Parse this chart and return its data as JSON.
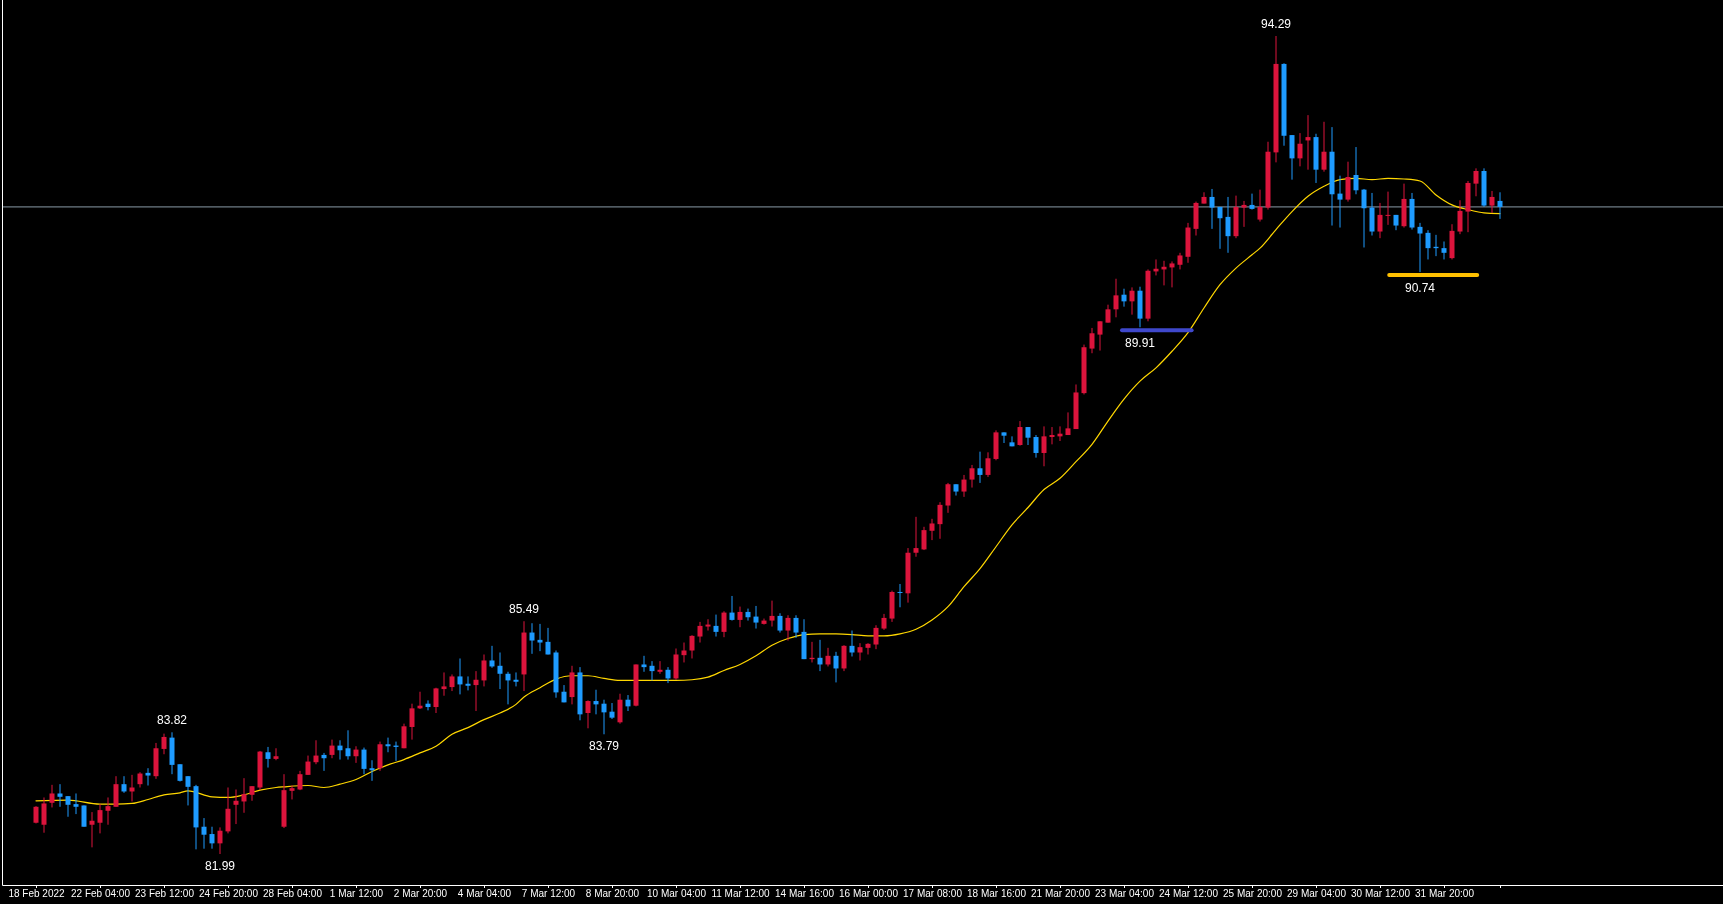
{
  "chart_data": {
    "type": "candlestick",
    "categories": [
      "18 Feb 2022",
      null,
      null,
      null,
      null,
      null,
      null,
      null,
      "22 Feb 04:00",
      null,
      null,
      null,
      null,
      null,
      null,
      null,
      "23 Feb 12:00",
      null,
      null,
      null,
      null,
      null,
      null,
      null,
      "24 Feb 20:00",
      null,
      null,
      null,
      null,
      null,
      null,
      null,
      "28 Feb 04:00",
      null,
      null,
      null,
      null,
      null,
      null,
      null,
      "1 Mar 12:00",
      null,
      null,
      null,
      null,
      null,
      null,
      null,
      "2 Mar 20:00",
      null,
      null,
      null,
      null,
      null,
      null,
      null,
      "4 Mar 04:00",
      null,
      null,
      null,
      null,
      null,
      null,
      null,
      "7 Mar 12:00",
      null,
      null,
      null,
      null,
      null,
      null,
      null,
      "8 Mar 20:00",
      null,
      null,
      null,
      null,
      null,
      null,
      null,
      "10 Mar 04:00",
      null,
      null,
      null,
      null,
      null,
      null,
      null,
      "11 Mar 12:00",
      null,
      null,
      null,
      null,
      null,
      null,
      null,
      "14 Mar 16:00",
      null,
      null,
      null,
      null,
      null,
      null,
      null,
      "16 Mar 00:00",
      null,
      null,
      null,
      null,
      null,
      null,
      null,
      "17 Mar 08:00",
      null,
      null,
      null,
      null,
      null,
      null,
      null,
      "18 Mar 16:00",
      null,
      null,
      null,
      null,
      null,
      null,
      null,
      "21 Mar 20:00",
      null,
      null,
      null,
      null,
      null,
      null,
      null,
      "23 Mar 04:00",
      null,
      null,
      null,
      null,
      null,
      null,
      null,
      "24 Mar 12:00",
      null,
      null,
      null,
      null,
      null,
      null,
      null,
      "25 Mar 20:00",
      null,
      null,
      null,
      null,
      null,
      null,
      null,
      "29 Mar 04:00",
      null,
      null,
      null,
      null,
      null,
      null,
      null,
      "30 Mar 12:00",
      null,
      null,
      null,
      null,
      null,
      null,
      null,
      "31 Mar 20:00",
      null,
      null,
      null,
      null,
      null,
      null,
      null
    ],
    "ohlc": [
      [
        82.46,
        82.71,
        82.45,
        82.7
      ],
      [
        82.43,
        82.84,
        82.31,
        82.75
      ],
      [
        82.76,
        83.03,
        82.69,
        82.9
      ],
      [
        82.9,
        83.04,
        82.7,
        82.85
      ],
      [
        82.86,
        82.86,
        82.55,
        82.73
      ],
      [
        82.74,
        82.9,
        82.59,
        82.7
      ],
      [
        82.72,
        82.72,
        82.4,
        82.4
      ],
      [
        82.43,
        82.62,
        82.09,
        82.49
      ],
      [
        82.46,
        82.74,
        82.3,
        82.65
      ],
      [
        82.64,
        82.84,
        82.43,
        82.71
      ],
      [
        82.7,
        83.16,
        82.7,
        83.04
      ],
      [
        83.04,
        83.16,
        82.91,
        82.93
      ],
      [
        82.93,
        83.18,
        82.78,
        82.99
      ],
      [
        83.04,
        83.22,
        82.99,
        83.2
      ],
      [
        83.21,
        83.28,
        83.02,
        83.17
      ],
      [
        83.16,
        83.66,
        83.12,
        83.58
      ],
      [
        83.57,
        83.8,
        83.49,
        83.75
      ],
      [
        83.74,
        83.82,
        83.19,
        83.33
      ],
      [
        83.34,
        83.34,
        83.08,
        83.09
      ],
      [
        83.16,
        83.16,
        82.72,
        83.0
      ],
      [
        83.01,
        83.03,
        82.06,
        82.39
      ],
      [
        82.4,
        82.53,
        82.07,
        82.28
      ],
      [
        82.29,
        82.4,
        82.07,
        82.15
      ],
      [
        82.15,
        82.39,
        81.99,
        82.34
      ],
      [
        82.33,
        82.99,
        82.3,
        82.67
      ],
      [
        82.73,
        82.96,
        82.44,
        82.79
      ],
      [
        82.78,
        83.13,
        82.61,
        82.89
      ],
      [
        82.88,
        83.01,
        82.79,
        83.01
      ],
      [
        82.99,
        83.54,
        82.95,
        83.53
      ],
      [
        83.52,
        83.6,
        83.29,
        83.42
      ],
      [
        83.42,
        83.58,
        83.4,
        83.46
      ],
      [
        82.4,
        83.19,
        82.38,
        82.95
      ],
      [
        82.94,
        83.02,
        82.81,
        82.98
      ],
      [
        82.96,
        83.24,
        82.95,
        83.19
      ],
      [
        83.18,
        83.47,
        83.18,
        83.38
      ],
      [
        83.37,
        83.7,
        83.34,
        83.47
      ],
      [
        83.48,
        83.51,
        83.24,
        83.43
      ],
      [
        83.48,
        83.71,
        83.43,
        83.62
      ],
      [
        83.62,
        83.7,
        83.41,
        83.55
      ],
      [
        83.58,
        83.85,
        83.41,
        83.46
      ],
      [
        83.46,
        83.61,
        83.36,
        83.56
      ],
      [
        83.56,
        83.59,
        83.19,
        83.27
      ],
      [
        83.28,
        83.4,
        83.09,
        83.25
      ],
      [
        83.28,
        83.68,
        83.24,
        83.64
      ],
      [
        83.64,
        83.74,
        83.52,
        83.61
      ],
      [
        83.62,
        83.68,
        83.39,
        83.6
      ],
      [
        83.58,
        83.95,
        83.58,
        83.91
      ],
      [
        83.9,
        84.25,
        83.71,
        84.18
      ],
      [
        84.18,
        84.43,
        84.17,
        84.22
      ],
      [
        84.25,
        84.3,
        84.15,
        84.2
      ],
      [
        84.2,
        84.49,
        84.11,
        84.48
      ],
      [
        84.47,
        84.72,
        84.37,
        84.51
      ],
      [
        84.5,
        84.69,
        84.44,
        84.66
      ],
      [
        84.66,
        84.93,
        84.39,
        84.54
      ],
      [
        84.55,
        84.66,
        84.45,
        84.52
      ],
      [
        84.53,
        84.74,
        84.14,
        84.61
      ],
      [
        84.6,
        84.99,
        84.51,
        84.9
      ],
      [
        84.9,
        85.12,
        84.79,
        84.81
      ],
      [
        84.82,
        85.02,
        84.47,
        84.7
      ],
      [
        84.7,
        84.73,
        84.24,
        84.6
      ],
      [
        84.61,
        84.72,
        84.51,
        84.58
      ],
      [
        84.69,
        85.49,
        84.44,
        85.32
      ],
      [
        85.32,
        85.46,
        85.0,
        85.2
      ],
      [
        85.21,
        85.45,
        85.04,
        85.17
      ],
      [
        85.18,
        85.39,
        84.99,
        84.99
      ],
      [
        85.02,
        85.05,
        84.34,
        84.42
      ],
      [
        84.43,
        84.53,
        84.27,
        84.27
      ],
      [
        84.35,
        84.82,
        84.24,
        84.72
      ],
      [
        84.72,
        84.8,
        84.0,
        84.09
      ],
      [
        84.11,
        84.3,
        83.88,
        84.29
      ],
      [
        84.29,
        84.46,
        84.09,
        84.24
      ],
      [
        84.25,
        84.31,
        83.79,
        84.12
      ],
      [
        84.13,
        84.26,
        84.02,
        84.04
      ],
      [
        83.97,
        84.4,
        83.95,
        84.31
      ],
      [
        84.31,
        84.38,
        84.14,
        84.21
      ],
      [
        84.22,
        84.84,
        84.21,
        84.84
      ],
      [
        84.84,
        84.97,
        84.73,
        84.8
      ],
      [
        84.82,
        84.89,
        84.6,
        84.74
      ],
      [
        84.73,
        84.89,
        84.7,
        84.76
      ],
      [
        84.76,
        84.8,
        84.56,
        84.63
      ],
      [
        84.63,
        85.08,
        84.61,
        84.99
      ],
      [
        84.98,
        85.17,
        84.87,
        85.05
      ],
      [
        85.05,
        85.28,
        84.93,
        85.27
      ],
      [
        85.26,
        85.48,
        85.17,
        85.42
      ],
      [
        85.41,
        85.52,
        85.35,
        85.44
      ],
      [
        85.42,
        85.59,
        85.26,
        85.33
      ],
      [
        85.33,
        85.64,
        85.25,
        85.62
      ],
      [
        85.62,
        85.87,
        85.5,
        85.51
      ],
      [
        85.51,
        85.71,
        85.4,
        85.63
      ],
      [
        85.63,
        85.68,
        85.5,
        85.55
      ],
      [
        85.56,
        85.72,
        85.38,
        85.47
      ],
      [
        85.45,
        85.53,
        85.44,
        85.5
      ],
      [
        85.5,
        85.8,
        85.41,
        85.57
      ],
      [
        85.57,
        85.61,
        85.32,
        85.35
      ],
      [
        85.35,
        85.58,
        85.2,
        85.54
      ],
      [
        85.54,
        85.58,
        85.24,
        85.32
      ],
      [
        85.33,
        85.52,
        84.92,
        84.92
      ],
      [
        84.92,
        85.18,
        84.87,
        84.94
      ],
      [
        84.94,
        85.21,
        84.74,
        84.84
      ],
      [
        84.84,
        85.09,
        84.81,
        84.97
      ],
      [
        84.97,
        85.03,
        84.57,
        84.78
      ],
      [
        84.78,
        85.13,
        84.74,
        85.12
      ],
      [
        85.12,
        85.35,
        84.96,
        85.02
      ],
      [
        85.02,
        85.16,
        84.9,
        85.1
      ],
      [
        85.09,
        85.16,
        84.99,
        85.15
      ],
      [
        85.14,
        85.43,
        85.07,
        85.39
      ],
      [
        85.38,
        85.6,
        85.36,
        85.54
      ],
      [
        85.53,
        85.95,
        85.48,
        85.93
      ],
      [
        85.93,
        86.05,
        85.7,
        85.92
      ],
      [
        85.91,
        86.59,
        85.77,
        86.52
      ],
      [
        86.52,
        87.06,
        86.46,
        86.59
      ],
      [
        86.57,
        86.91,
        86.56,
        86.86
      ],
      [
        86.85,
        87.03,
        86.71,
        86.96
      ],
      [
        86.95,
        87.28,
        86.73,
        87.24
      ],
      [
        87.23,
        87.57,
        87.12,
        87.55
      ],
      [
        87.55,
        87.55,
        87.38,
        87.44
      ],
      [
        87.44,
        87.69,
        87.36,
        87.62
      ],
      [
        87.62,
        87.84,
        87.5,
        87.79
      ],
      [
        87.79,
        88.04,
        87.57,
        87.69
      ],
      [
        87.69,
        88.03,
        87.66,
        87.94
      ],
      [
        87.93,
        88.36,
        87.91,
        88.33
      ],
      [
        88.33,
        88.33,
        88.17,
        88.28
      ],
      [
        88.18,
        88.27,
        88.12,
        88.12
      ],
      [
        88.14,
        88.5,
        88.13,
        88.41
      ],
      [
        88.41,
        88.41,
        88.14,
        88.25
      ],
      [
        88.26,
        88.29,
        87.95,
        88.02
      ],
      [
        88.02,
        88.42,
        87.82,
        88.27
      ],
      [
        88.26,
        88.41,
        88.15,
        88.29
      ],
      [
        88.27,
        88.42,
        88.2,
        88.31
      ],
      [
        88.29,
        88.63,
        88.29,
        88.39
      ],
      [
        88.38,
        89.05,
        88.38,
        88.93
      ],
      [
        88.92,
        89.65,
        88.9,
        89.61
      ],
      [
        89.59,
        89.9,
        89.52,
        89.82
      ],
      [
        89.8,
        90.0,
        89.56,
        90.0
      ],
      [
        89.98,
        90.25,
        89.98,
        90.18
      ],
      [
        90.18,
        90.64,
        90.06,
        90.39
      ],
      [
        90.4,
        90.49,
        90.22,
        90.3
      ],
      [
        90.3,
        90.51,
        90.1,
        90.46
      ],
      [
        90.46,
        90.52,
        89.91,
        90.04
      ],
      [
        90.04,
        90.78,
        90.0,
        90.76
      ],
      [
        90.75,
        90.93,
        90.69,
        90.79
      ],
      [
        90.78,
        90.91,
        90.54,
        90.82
      ],
      [
        90.81,
        90.9,
        90.51,
        90.87
      ],
      [
        90.85,
        91.03,
        90.78,
        90.99
      ],
      [
        90.97,
        91.48,
        90.88,
        91.41
      ],
      [
        91.39,
        91.8,
        91.29,
        91.78
      ],
      [
        91.77,
        91.94,
        91.77,
        91.87
      ],
      [
        91.87,
        91.99,
        91.39,
        91.71
      ],
      [
        91.72,
        91.72,
        91.09,
        91.55
      ],
      [
        91.57,
        91.87,
        91.03,
        91.28
      ],
      [
        91.28,
        91.89,
        91.25,
        91.72
      ],
      [
        91.71,
        91.81,
        91.42,
        91.75
      ],
      [
        91.75,
        91.92,
        91.68,
        91.69
      ],
      [
        91.53,
        91.98,
        91.5,
        91.72
      ],
      [
        91.71,
        92.7,
        91.68,
        92.55
      ],
      [
        92.54,
        94.29,
        92.39,
        93.87
      ],
      [
        93.87,
        93.88,
        92.64,
        92.79
      ],
      [
        92.8,
        92.8,
        92.13,
        92.45
      ],
      [
        92.45,
        92.83,
        92.33,
        92.67
      ],
      [
        92.72,
        93.1,
        92.28,
        92.77
      ],
      [
        92.77,
        92.82,
        92.08,
        92.28
      ],
      [
        92.28,
        93.0,
        92.25,
        92.55
      ],
      [
        92.55,
        92.92,
        91.44,
        91.91
      ],
      [
        91.92,
        92.19,
        91.41,
        91.83
      ],
      [
        91.83,
        92.4,
        91.8,
        92.17
      ],
      [
        92.2,
        92.62,
        91.91,
        91.97
      ],
      [
        91.98,
        91.99,
        91.11,
        91.7
      ],
      [
        91.71,
        91.93,
        91.29,
        91.35
      ],
      [
        91.35,
        91.78,
        91.25,
        91.6
      ],
      [
        91.59,
        91.95,
        91.45,
        91.6
      ],
      [
        91.6,
        91.6,
        91.37,
        91.44
      ],
      [
        91.43,
        92.07,
        91.41,
        91.84
      ],
      [
        91.84,
        91.93,
        91.38,
        91.41
      ],
      [
        91.42,
        91.48,
        90.74,
        91.32
      ],
      [
        91.33,
        91.37,
        90.93,
        91.1
      ],
      [
        91.12,
        91.3,
        90.98,
        91.1
      ],
      [
        91.1,
        91.2,
        90.93,
        91.03
      ],
      [
        90.95,
        91.46,
        90.93,
        91.36
      ],
      [
        91.35,
        91.82,
        91.31,
        91.66
      ],
      [
        91.65,
        92.11,
        91.34,
        92.08
      ],
      [
        92.07,
        92.3,
        91.88,
        92.26
      ],
      [
        92.26,
        92.3,
        91.72,
        91.74
      ],
      [
        91.74,
        91.96,
        91.63,
        91.87
      ],
      [
        91.81,
        91.94,
        91.54,
        91.72
      ]
    ],
    "series": [
      {
        "type": "line",
        "color": "#ffd700",
        "values": [
          82.79,
          null,
          null,
          null,
          82.8,
          null,
          null,
          null,
          82.74,
          null,
          82.74,
          null,
          82.75,
          null,
          82.81,
          null,
          82.88,
          null,
          82.91,
          82.94,
          null,
          null,
          82.85,
          null,
          82.84,
          null,
          82.88,
          null,
          82.95,
          null,
          82.99,
          83.0,
          null,
          null,
          83.02,
          null,
          82.99,
          null,
          83.04,
          null,
          83.11,
          null,
          83.23,
          null,
          83.33,
          null,
          83.41,
          null,
          83.51,
          null,
          83.61,
          null,
          83.79,
          null,
          83.89,
          null,
          84.01,
          null,
          84.11,
          null,
          84.24,
          84.35,
          null,
          84.49,
          null,
          84.62,
          null,
          84.67,
          null,
          84.67,
          null,
          84.63,
          null,
          84.6,
          null,
          null,
          84.6,
          null,
          84.6,
          null,
          84.6,
          null,
          84.61,
          null,
          84.65,
          null,
          84.75,
          null,
          84.84,
          null,
          84.97,
          null,
          85.13,
          null,
          85.23,
          null,
          85.29,
          null,
          85.3,
          null,
          85.3,
          null,
          85.29,
          null,
          85.27,
          null,
          85.27,
          null,
          85.3,
          null,
          85.37,
          null,
          85.51,
          null,
          85.71,
          null,
          86.01,
          null,
          86.28,
          null,
          86.61,
          null,
          86.94,
          null,
          87.2,
          null,
          87.47,
          null,
          87.64,
          null,
          87.89,
          null,
          88.15,
          null,
          88.5,
          null,
          88.83,
          null,
          89.1,
          null,
          89.3,
          null,
          89.55,
          null,
          89.83,
          null,
          90.2,
          null,
          90.55,
          null,
          90.8,
          null,
          91.0,
          91.1,
          null,
          91.38,
          null,
          91.65,
          null,
          91.88,
          null,
          92.03,
          null,
          92.13,
          null,
          92.15,
          null,
          92.13,
          null,
          92.15,
          null,
          92.14,
          null,
          92.11,
          null,
          91.9,
          null,
          91.75,
          null,
          91.68,
          null,
          91.63,
          null,
          91.62
        ]
      }
    ],
    "ref_lines": [
      {
        "axis": "y",
        "value": 91.72,
        "color": "#8a9aa6"
      }
    ],
    "annotations": [
      {
        "text": "83.82",
        "y": 83.82
      },
      {
        "text": "81.99",
        "y": 81.99
      },
      {
        "text": "85.49",
        "y": 85.49
      },
      {
        "text": "83.79",
        "y": 83.79
      },
      {
        "text": "89.91",
        "y": 89.91
      },
      {
        "text": "94.29",
        "y": 94.29
      },
      {
        "text": "90.74",
        "y": 90.74
      }
    ]
  }
}
